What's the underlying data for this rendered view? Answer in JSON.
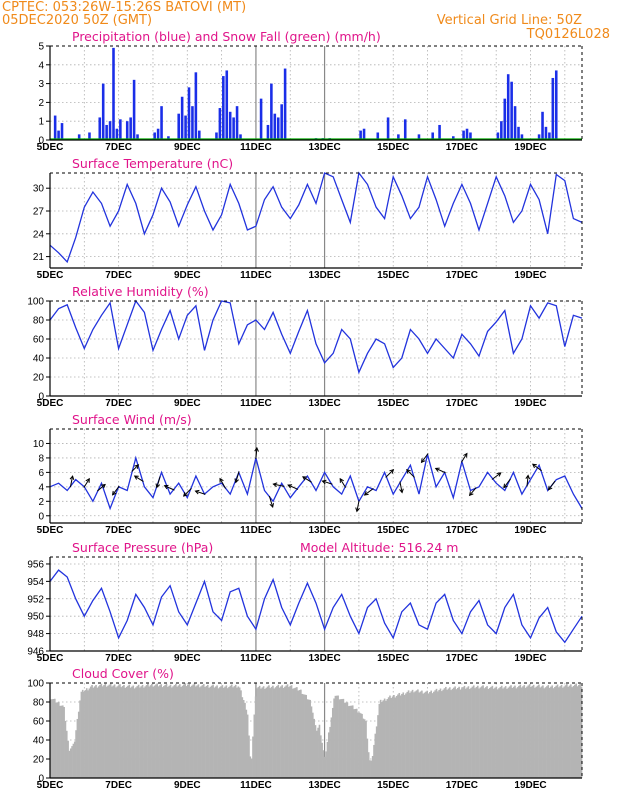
{
  "header": {
    "line1_left": "CPTEC:   053:26W-15:26S   BATOVI (MT)",
    "line2_left": "05DEC2020 50Z (GMT)",
    "line2_right": "Vertical Grid Line: 50Z",
    "line3_right": "TQ0126L028"
  },
  "colors": {
    "header": "#f08a1a",
    "panel_title": "#e0148a",
    "line": "#2233dd",
    "precip": "#1a2ee8",
    "snow": "#00aa00",
    "cloud": "#b4b4b4",
    "arrow": "#000000"
  },
  "x_axis": {
    "labels": [
      "5DEC",
      "7DEC",
      "9DEC",
      "11DEC",
      "13DEC",
      "15DEC",
      "17DEC",
      "19DEC"
    ],
    "label_days": [
      0,
      2,
      4,
      6,
      8,
      10,
      12,
      14
    ],
    "day_span": [
      0,
      15.5
    ]
  },
  "chart_data": [
    {
      "id": "precip",
      "type": "bar",
      "title": "Precipitation (blue) and Snow Fall (green) (mm/h)",
      "ylim": [
        0,
        5
      ],
      "yticks": [
        0,
        1,
        2,
        3,
        4,
        5
      ],
      "x": [
        0.15,
        0.25,
        0.35,
        0.85,
        1.15,
        1.45,
        1.55,
        1.65,
        1.75,
        1.85,
        1.95,
        2.05,
        2.25,
        2.35,
        2.45,
        2.55,
        3.05,
        3.15,
        3.25,
        3.45,
        3.75,
        3.85,
        3.95,
        4.05,
        4.15,
        4.25,
        4.35,
        4.85,
        4.95,
        5.05,
        5.15,
        5.25,
        5.35,
        5.45,
        5.55,
        6.15,
        6.35,
        6.45,
        6.55,
        6.65,
        6.75,
        6.85,
        7.75,
        7.95,
        8.15,
        9.05,
        9.15,
        9.55,
        9.85,
        10.15,
        10.35,
        10.75,
        11.15,
        11.35,
        11.75,
        12.05,
        12.15,
        12.25,
        13.05,
        13.15,
        13.25,
        13.35,
        13.45,
        13.55,
        13.65,
        13.75,
        14.25,
        14.35,
        14.45,
        14.55,
        14.65,
        14.75
      ],
      "values": [
        1.3,
        0.5,
        0.9,
        0.3,
        0.4,
        1.2,
        3.0,
        0.8,
        1.0,
        4.9,
        0.6,
        1.1,
        1.0,
        1.2,
        3.2,
        0.3,
        0.4,
        0.6,
        1.8,
        0.2,
        1.4,
        2.3,
        1.3,
        2.8,
        1.8,
        3.6,
        0.5,
        0.4,
        1.7,
        3.4,
        3.7,
        1.5,
        1.2,
        1.8,
        0.3,
        2.2,
        0.8,
        3.0,
        1.4,
        1.2,
        1.9,
        3.8,
        0.1,
        0.1,
        0.1,
        0.5,
        0.6,
        0.4,
        1.2,
        0.3,
        1.1,
        0.3,
        0.4,
        0.8,
        0.2,
        0.5,
        0.6,
        0.4,
        0.4,
        1.0,
        2.2,
        3.5,
        3.1,
        1.8,
        0.7,
        0.3,
        0.3,
        1.5,
        0.7,
        0.4,
        3.3,
        3.7
      ],
      "snow": 0,
      "xlabel": "",
      "ylabel": ""
    },
    {
      "id": "temp",
      "type": "line",
      "title": "Surface Temperature (nC)",
      "ylim": [
        19.5,
        32
      ],
      "yticks": [
        21,
        24,
        27,
        30
      ],
      "x": [
        0,
        0.25,
        0.5,
        0.75,
        1.0,
        1.25,
        1.5,
        1.75,
        2.0,
        2.25,
        2.5,
        2.75,
        3.0,
        3.25,
        3.5,
        3.75,
        4.0,
        4.25,
        4.5,
        4.75,
        5.0,
        5.25,
        5.5,
        5.75,
        6.0,
        6.25,
        6.5,
        6.75,
        7.0,
        7.25,
        7.5,
        7.75,
        8.0,
        8.25,
        8.5,
        8.75,
        9.0,
        9.25,
        9.5,
        9.75,
        10.0,
        10.25,
        10.5,
        10.75,
        11.0,
        11.25,
        11.5,
        11.75,
        12.0,
        12.25,
        12.5,
        12.75,
        13.0,
        13.25,
        13.5,
        13.75,
        14.0,
        14.25,
        14.5,
        14.75,
        15.0,
        15.25,
        15.5
      ],
      "values": [
        22.5,
        21.5,
        20.3,
        23.5,
        27.5,
        29.5,
        28.0,
        25.0,
        27.0,
        30.5,
        28.0,
        24.0,
        26.5,
        30.0,
        28.2,
        25.0,
        27.8,
        30.2,
        27.0,
        24.5,
        26.5,
        30.5,
        28.0,
        24.5,
        25.0,
        28.5,
        30.2,
        27.5,
        26.0,
        27.8,
        30.5,
        28.0,
        32.0,
        31.5,
        28.5,
        25.5,
        32.0,
        30.5,
        27.5,
        26.0,
        31.5,
        29.0,
        26.0,
        27.5,
        31.5,
        28.5,
        25.0,
        28.0,
        30.5,
        28.0,
        24.5,
        28.0,
        31.5,
        29.0,
        25.5,
        27.0,
        30.5,
        28.5,
        24.0,
        31.8,
        31.0,
        26.0,
        25.5
      ],
      "xlabel": "",
      "ylabel": ""
    },
    {
      "id": "rh",
      "type": "line",
      "title": "Relative Humidity (%)",
      "ylim": [
        0,
        100
      ],
      "yticks": [
        0,
        20,
        40,
        60,
        80,
        100
      ],
      "x": [
        0,
        0.25,
        0.5,
        0.75,
        1.0,
        1.25,
        1.5,
        1.75,
        2.0,
        2.25,
        2.5,
        2.75,
        3.0,
        3.25,
        3.5,
        3.75,
        4.0,
        4.25,
        4.5,
        4.75,
        5.0,
        5.25,
        5.5,
        5.75,
        6.0,
        6.25,
        6.5,
        6.75,
        7.0,
        7.25,
        7.5,
        7.75,
        8.0,
        8.25,
        8.5,
        8.75,
        9.0,
        9.25,
        9.5,
        9.75,
        10.0,
        10.25,
        10.5,
        10.75,
        11.0,
        11.25,
        11.5,
        11.75,
        12.0,
        12.25,
        12.5,
        12.75,
        13.0,
        13.25,
        13.5,
        13.75,
        14.0,
        14.25,
        14.5,
        14.75,
        15.0,
        15.25,
        15.5
      ],
      "values": [
        80,
        92,
        96,
        72,
        50,
        70,
        85,
        98,
        50,
        75,
        100,
        88,
        48,
        70,
        90,
        60,
        85,
        95,
        48,
        80,
        100,
        98,
        55,
        75,
        80,
        70,
        88,
        65,
        45,
        68,
        90,
        55,
        35,
        45,
        70,
        60,
        25,
        45,
        60,
        55,
        30,
        40,
        70,
        60,
        45,
        60,
        50,
        40,
        65,
        55,
        42,
        68,
        78,
        90,
        45,
        60,
        95,
        82,
        98,
        95,
        52,
        85,
        82
      ],
      "xlabel": "",
      "ylabel": ""
    },
    {
      "id": "wind",
      "type": "line",
      "title": "Surface Wind (m/s)",
      "ylim": [
        -1,
        12
      ],
      "yticks": [
        0,
        2,
        4,
        6,
        8,
        10
      ],
      "x": [
        0,
        0.25,
        0.5,
        0.75,
        1.0,
        1.25,
        1.5,
        1.75,
        2.0,
        2.25,
        2.5,
        2.75,
        3.0,
        3.25,
        3.5,
        3.75,
        4.0,
        4.25,
        4.5,
        4.75,
        5.0,
        5.25,
        5.5,
        5.75,
        6.0,
        6.25,
        6.5,
        6.75,
        7.0,
        7.25,
        7.5,
        7.75,
        8.0,
        8.25,
        8.5,
        8.75,
        9.0,
        9.25,
        9.5,
        9.75,
        10.0,
        10.25,
        10.5,
        10.75,
        11.0,
        11.25,
        11.5,
        11.75,
        12.0,
        12.25,
        12.5,
        12.75,
        13.0,
        13.25,
        13.5,
        13.75,
        14.0,
        14.25,
        14.5,
        14.75,
        15.0,
        15.25,
        15.5
      ],
      "values": [
        4.0,
        4.5,
        3.5,
        5.0,
        4.0,
        2.0,
        4.5,
        1.0,
        4.0,
        3.5,
        8.0,
        4.0,
        2.5,
        6.0,
        3.0,
        4.5,
        2.5,
        5.5,
        3.0,
        4.0,
        4.5,
        3.0,
        6.0,
        3.0,
        8.0,
        3.5,
        2.0,
        4.5,
        2.5,
        4.0,
        5.5,
        3.5,
        6.0,
        4.0,
        3.0,
        5.5,
        2.0,
        4.0,
        3.5,
        6.0,
        3.0,
        5.0,
        7.0,
        3.0,
        8.5,
        4.0,
        6.0,
        2.5,
        7.5,
        3.5,
        4.0,
        6.0,
        4.5,
        3.5,
        6.0,
        3.0,
        5.0,
        7.0,
        3.5,
        5.0,
        5.5,
        3.0,
        1.0
      ],
      "arrows": [
        {
          "day": 0.6,
          "u": 0.2,
          "v": 1.0
        },
        {
          "day": 1.0,
          "u": 0.5,
          "v": 0.8
        },
        {
          "day": 1.4,
          "u": 0.7,
          "v": 0.6
        },
        {
          "day": 2.0,
          "u": -0.6,
          "v": -0.8
        },
        {
          "day": 2.4,
          "u": 0.6,
          "v": 0.6
        },
        {
          "day": 2.7,
          "u": -0.8,
          "v": 0.5
        },
        {
          "day": 3.2,
          "u": -0.3,
          "v": -1.0
        },
        {
          "day": 3.6,
          "u": -0.9,
          "v": 0.4
        },
        {
          "day": 4.1,
          "u": -0.7,
          "v": -0.7
        },
        {
          "day": 4.5,
          "u": -0.9,
          "v": 0.3
        },
        {
          "day": 5.1,
          "u": -0.5,
          "v": 0.9
        },
        {
          "day": 5.5,
          "u": -0.3,
          "v": -1.0
        },
        {
          "day": 6.0,
          "u": 0.1,
          "v": 1.0
        },
        {
          "day": 6.4,
          "u": 0.3,
          "v": -1.0
        },
        {
          "day": 6.8,
          "u": -1.0,
          "v": 0.2
        },
        {
          "day": 7.2,
          "u": -0.9,
          "v": 0.4
        },
        {
          "day": 7.6,
          "u": -0.8,
          "v": 0.5
        },
        {
          "day": 8.2,
          "u": -0.9,
          "v": 0.3
        },
        {
          "day": 8.6,
          "u": -0.5,
          "v": 0.8
        },
        {
          "day": 9.0,
          "u": -0.2,
          "v": -1.0
        },
        {
          "day": 9.4,
          "u": -0.8,
          "v": -0.6
        },
        {
          "day": 9.8,
          "u": 0.7,
          "v": 0.7
        },
        {
          "day": 10.2,
          "u": 0.2,
          "v": -1.0
        },
        {
          "day": 10.6,
          "u": -0.7,
          "v": 0.7
        },
        {
          "day": 11.0,
          "u": -0.6,
          "v": -0.8
        },
        {
          "day": 11.5,
          "u": -0.9,
          "v": 0.4
        },
        {
          "day": 12.0,
          "u": 0.5,
          "v": 0.8
        },
        {
          "day": 12.4,
          "u": -0.6,
          "v": -0.7
        },
        {
          "day": 12.9,
          "u": 0.8,
          "v": 0.6
        },
        {
          "day": 13.4,
          "u": -0.6,
          "v": -0.8
        },
        {
          "day": 13.9,
          "u": 0.1,
          "v": 1.0
        },
        {
          "day": 14.3,
          "u": -0.8,
          "v": 0.6
        },
        {
          "day": 14.7,
          "u": -0.6,
          "v": -0.8
        }
      ],
      "xlabel": "",
      "ylabel": ""
    },
    {
      "id": "pres",
      "type": "line",
      "title": "Surface Pressure (hPa)",
      "subtitle": "Model Altitude: 516.24  m",
      "ylim": [
        946,
        956.8
      ],
      "yticks": [
        946,
        948,
        950,
        952,
        954,
        956
      ],
      "x": [
        0,
        0.25,
        0.5,
        0.75,
        1.0,
        1.25,
        1.5,
        1.75,
        2.0,
        2.25,
        2.5,
        2.75,
        3.0,
        3.25,
        3.5,
        3.75,
        4.0,
        4.25,
        4.5,
        4.75,
        5.0,
        5.25,
        5.5,
        5.75,
        6.0,
        6.25,
        6.5,
        6.75,
        7.0,
        7.25,
        7.5,
        7.75,
        8.0,
        8.25,
        8.5,
        8.75,
        9.0,
        9.25,
        9.5,
        9.75,
        10.0,
        10.25,
        10.5,
        10.75,
        11.0,
        11.25,
        11.5,
        11.75,
        12.0,
        12.25,
        12.5,
        12.75,
        13.0,
        13.25,
        13.5,
        13.75,
        14.0,
        14.25,
        14.5,
        14.75,
        15.0,
        15.25,
        15.5
      ],
      "values": [
        954.0,
        955.3,
        954.5,
        952.0,
        950.0,
        951.8,
        953.2,
        950.5,
        947.5,
        949.5,
        952.5,
        951.0,
        949.0,
        952.2,
        953.5,
        950.5,
        949.0,
        951.5,
        954.0,
        950.5,
        949.5,
        952.8,
        953.2,
        950.0,
        948.5,
        952.0,
        954.2,
        951.0,
        949.0,
        951.5,
        953.8,
        951.5,
        948.5,
        951.0,
        952.5,
        950.0,
        948.0,
        951.0,
        952.0,
        949.2,
        947.5,
        950.5,
        951.5,
        949.0,
        948.5,
        951.5,
        952.5,
        949.5,
        948.0,
        950.5,
        951.8,
        949.0,
        948.0,
        951.0,
        952.5,
        949.0,
        947.5,
        949.8,
        951.0,
        948.2,
        947.0,
        948.5,
        950.0
      ],
      "xlabel": "",
      "ylabel": ""
    },
    {
      "id": "cloud",
      "type": "area",
      "title": "Cloud Cover (%)",
      "ylim": [
        0,
        100
      ],
      "yticks": [
        0,
        20,
        40,
        60,
        80,
        100
      ],
      "x": [
        0,
        0.2,
        0.4,
        0.55,
        0.7,
        0.9,
        1.2,
        1.6,
        2.0,
        2.5,
        3.0,
        3.5,
        4.0,
        4.5,
        5.0,
        5.5,
        5.75,
        5.85,
        6.0,
        6.5,
        7.0,
        7.3,
        7.6,
        7.75,
        7.85,
        8.0,
        8.3,
        8.6,
        9.0,
        9.2,
        9.3,
        9.35,
        9.4,
        9.6,
        9.9,
        10.2,
        10.6,
        11.0,
        11.5,
        12.0,
        12.5,
        13.0,
        13.5,
        14.0,
        14.5,
        15.0,
        15.5
      ],
      "values": [
        85,
        80,
        75,
        30,
        35,
        90,
        96,
        98,
        97,
        96,
        98,
        97,
        98,
        97,
        96,
        97,
        70,
        10,
        95,
        96,
        97,
        92,
        80,
        50,
        55,
        20,
        88,
        80,
        70,
        60,
        20,
        15,
        25,
        80,
        85,
        88,
        92,
        90,
        94,
        95,
        96,
        95,
        96,
        97,
        96,
        97,
        98
      ],
      "xlabel": "",
      "ylabel": ""
    }
  ]
}
